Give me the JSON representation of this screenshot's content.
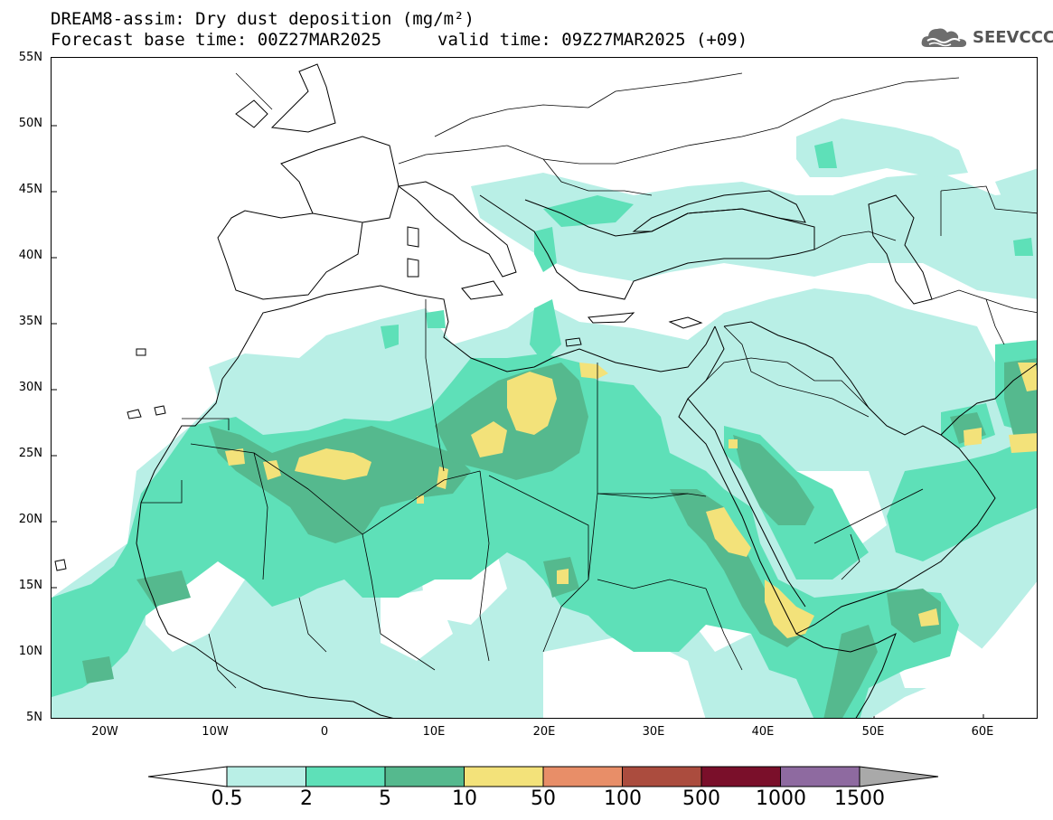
{
  "title": {
    "line1": "DREAM8-assim: Dry dust deposition (mg/m²)",
    "line2": "Forecast base time: 00Z27MAR2025",
    "line2b": "valid time: 09Z27MAR2025 (+09)"
  },
  "logo": {
    "icon": "cloud-icon",
    "text": "SEEVCCC"
  },
  "axes": {
    "lat_labels": [
      "55N",
      "50N",
      "45N",
      "40N",
      "35N",
      "30N",
      "25N",
      "20N",
      "15N",
      "10N",
      "5N"
    ],
    "lon_labels": [
      "20W",
      "10W",
      "0",
      "10E",
      "20E",
      "30E",
      "40E",
      "50E",
      "60E"
    ]
  },
  "colorbar": {
    "labels": [
      "0.5",
      "2",
      "5",
      "10",
      "50",
      "100",
      "500",
      "1000",
      "1500"
    ],
    "colors": [
      "#b9efe6",
      "#5ee0b8",
      "#55b98e",
      "#f3e27a",
      "#e88e68",
      "#ab4c3e",
      "#7a0f2a",
      "#8e6aa0"
    ],
    "under_color": "#ffffff",
    "over_color": "#a9a9a9"
  }
}
